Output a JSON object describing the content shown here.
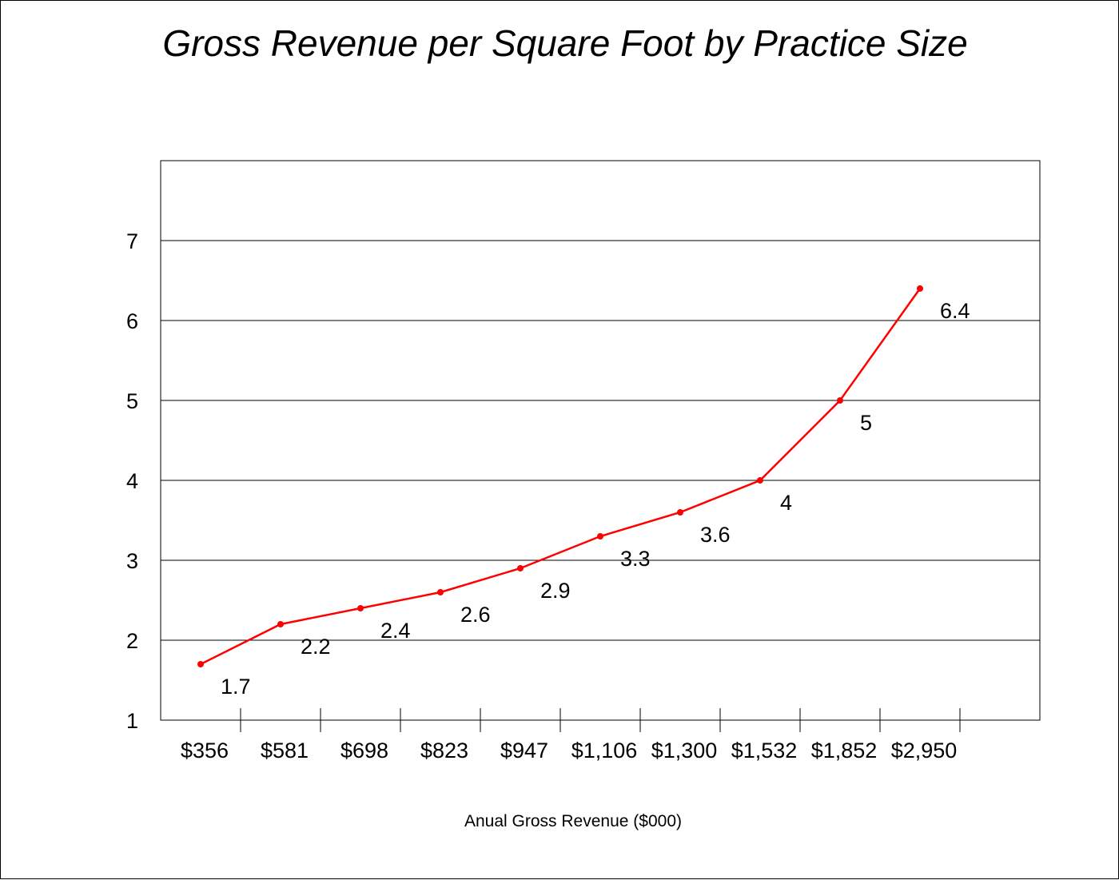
{
  "chart_data": {
    "type": "line",
    "title": "Gross Revenue per Square Foot by Practice Size",
    "xlabel": "Anual Gross Revenue ($000)",
    "ylabel": "",
    "categories": [
      "$356",
      "$581",
      "$698",
      "$823",
      "$947",
      "$1,106",
      "$1,300",
      "$1,532",
      "$1,852",
      "$2,950"
    ],
    "series": [
      {
        "values": [
          1.7,
          2.2,
          2.4,
          2.6,
          2.9,
          3.3,
          3.6,
          4,
          5,
          6.4
        ],
        "color": "#ff0000"
      }
    ],
    "data_labels": [
      "1.7",
      "2.2",
      "2.4",
      "2.6",
      "2.9",
      "3.3",
      "3.6",
      "4",
      "5",
      "6.4"
    ],
    "ylim": [
      1,
      8
    ],
    "yticks": [
      "1",
      "2",
      "3",
      "4",
      "5",
      "6",
      "7"
    ],
    "grid": "horizontal",
    "legend": "none"
  }
}
